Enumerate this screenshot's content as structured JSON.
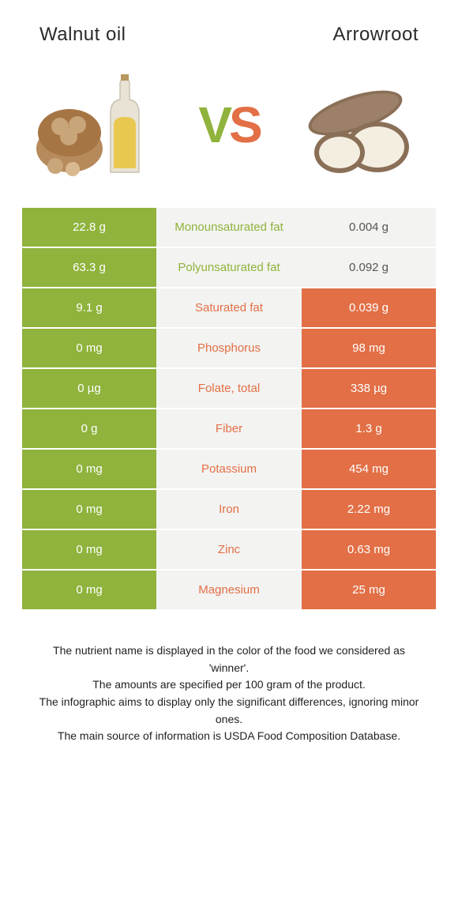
{
  "header": {
    "left_title": "Walnut oil",
    "right_title": "Arrowroot"
  },
  "hero": {
    "vs_v": "V",
    "vs_s": "S"
  },
  "colors": {
    "green": "#8fb33c",
    "orange": "#e26f46",
    "pale": "#f3f3f1",
    "text_dark": "#2a2a2a"
  },
  "left_bg": "#8fb33c",
  "right_bg_win": "#e26f46",
  "right_bg_lose": "#f3f3f1",
  "left_bg_lose": "#f3f3f1",
  "rows": [
    {
      "nutrient": "Monounsaturated fat",
      "left": "22.8 g",
      "right": "0.004 g",
      "winner": "left"
    },
    {
      "nutrient": "Polyunsaturated fat",
      "left": "63.3 g",
      "right": "0.092 g",
      "winner": "left"
    },
    {
      "nutrient": "Saturated fat",
      "left": "9.1 g",
      "right": "0.039 g",
      "winner": "right"
    },
    {
      "nutrient": "Phosphorus",
      "left": "0 mg",
      "right": "98 mg",
      "winner": "right"
    },
    {
      "nutrient": "Folate, total",
      "left": "0 µg",
      "right": "338 µg",
      "winner": "right"
    },
    {
      "nutrient": "Fiber",
      "left": "0 g",
      "right": "1.3 g",
      "winner": "right"
    },
    {
      "nutrient": "Potassium",
      "left": "0 mg",
      "right": "454 mg",
      "winner": "right"
    },
    {
      "nutrient": "Iron",
      "left": "0 mg",
      "right": "2.22 mg",
      "winner": "right"
    },
    {
      "nutrient": "Zinc",
      "left": "0 mg",
      "right": "0.63 mg",
      "winner": "right"
    },
    {
      "nutrient": "Magnesium",
      "left": "0 mg",
      "right": "25 mg",
      "winner": "right"
    }
  ],
  "footnote": {
    "l1": "The nutrient name is displayed in the color of the food we considered as 'winner'.",
    "l2": "The amounts are specified per 100 gram of the product.",
    "l3": "The infographic aims to display only the significant differences, ignoring minor ones.",
    "l4": "The main source of information is USDA Food Composition Database."
  }
}
